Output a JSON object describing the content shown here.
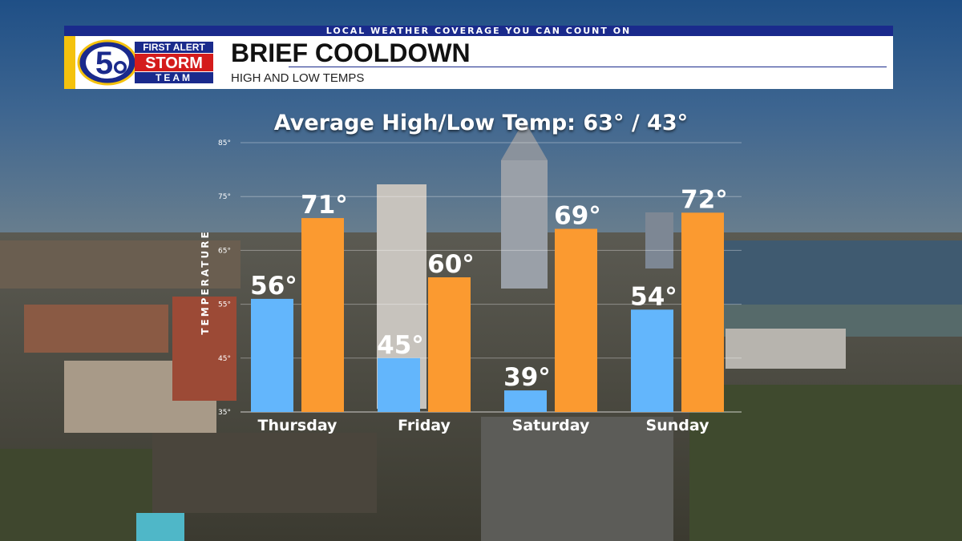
{
  "header": {
    "tagline": "LOCAL WEATHER COVERAGE YOU CAN COUNT ON",
    "title": "BRIEF COOLDOWN",
    "subtitle": "HIGH AND LOW TEMPS"
  },
  "logo": {
    "number": "5",
    "line1": "FIRST ALERT",
    "line2": "STORM",
    "line3": "TEAM"
  },
  "colors": {
    "low": "#63b6fc",
    "high": "#fb9a30",
    "banner_blue": "#1a2a8c",
    "accent_yellow": "#f4c20d"
  },
  "chart_data": {
    "type": "bar",
    "title": "Average High/Low Temp: 63° / 43°",
    "ylabel": "TEMPERATURE",
    "xlabel": "",
    "ylim": [
      35,
      85
    ],
    "yticks": [
      35,
      45,
      55,
      65,
      75,
      85
    ],
    "tick_suffix": "°",
    "value_suffix": "°",
    "categories": [
      "Thursday",
      "Friday",
      "Saturday",
      "Sunday"
    ],
    "series": [
      {
        "values": [
          56,
          45,
          39,
          54
        ]
      },
      {
        "values": [
          71,
          60,
          69,
          72
        ]
      }
    ]
  }
}
